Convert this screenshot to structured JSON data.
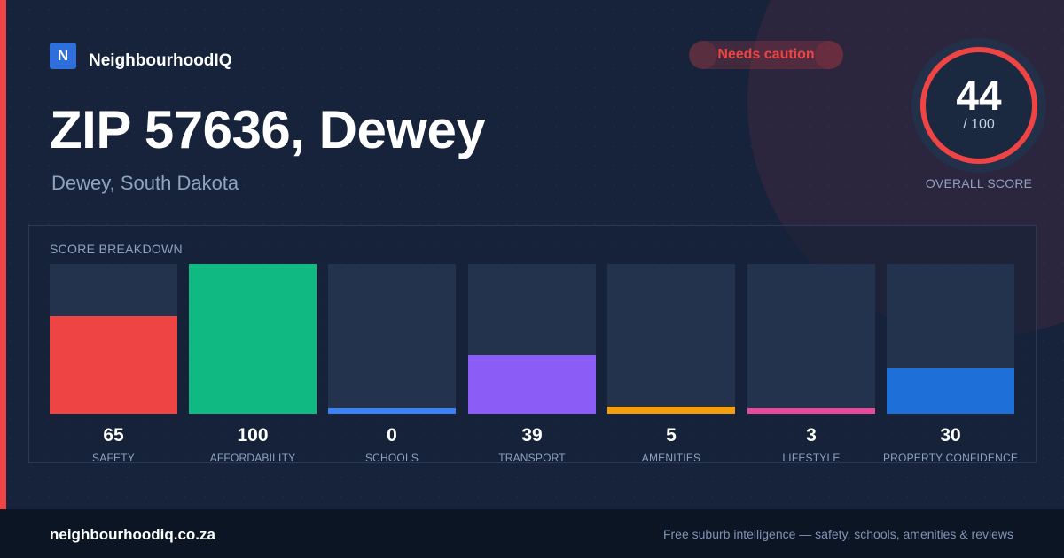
{
  "brand": {
    "logo_letter": "N",
    "name": "NeighbourhoodIQ"
  },
  "badge": {
    "label": "Needs caution",
    "color": "#ef4444"
  },
  "header": {
    "title": "ZIP 57636, Dewey",
    "subtitle": "Dewey, South Dakota"
  },
  "overall": {
    "value": "44",
    "max_label": "/ 100",
    "label": "OVERALL SCORE",
    "score": 44,
    "max": 100,
    "ring_color": "#ef4444"
  },
  "breakdown": {
    "title": "SCORE BREAKDOWN",
    "items": [
      {
        "value": "65",
        "label": "SAFETY",
        "score": 65,
        "color": "#ef4444"
      },
      {
        "value": "100",
        "label": "AFFORDABILITY",
        "score": 100,
        "color": "#10b981"
      },
      {
        "value": "0",
        "label": "SCHOOLS",
        "score": 0,
        "color": "#3b82f6"
      },
      {
        "value": "39",
        "label": "TRANSPORT",
        "score": 39,
        "color": "#8b5cf6"
      },
      {
        "value": "5",
        "label": "AMENITIES",
        "score": 5,
        "color": "#f59e0b"
      },
      {
        "value": "3",
        "label": "LIFESTYLE",
        "score": 3,
        "color": "#ec4899"
      },
      {
        "value": "30",
        "label": "PROPERTY CONFIDENCE",
        "score": 30,
        "color": "#1f6fd8"
      }
    ]
  },
  "footer": {
    "domain": "neighbourhoodiq.co.za",
    "tagline": "Free suburb intelligence — safety, schools, amenities & reviews"
  }
}
